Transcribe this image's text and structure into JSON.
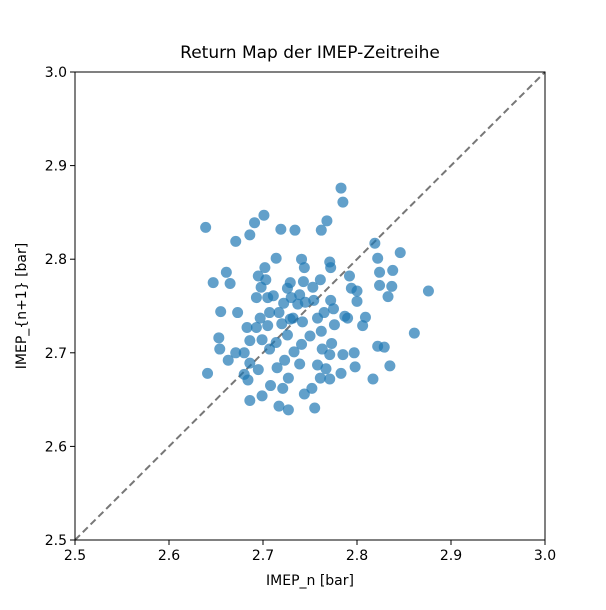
{
  "chart_data": {
    "type": "scatter",
    "title": "Return Map der IMEP-Zeitreihe",
    "xlabel": "IMEP_n [bar]",
    "ylabel": "IMEP_{n+1} [bar]",
    "xlim": [
      2.5,
      3.0
    ],
    "ylim": [
      2.5,
      3.0
    ],
    "xticks": [
      2.5,
      2.6,
      2.7,
      2.8,
      2.9,
      {
        "value": 3,
        "label": "3.0"
      }
    ],
    "yticks": [
      2.5,
      2.6,
      2.7,
      2.8,
      2.9,
      {
        "value": 3,
        "label": "3.0"
      }
    ],
    "color": "#1f77b4",
    "x": [
      2.639,
      2.641,
      2.701,
      2.783,
      2.785,
      2.876,
      2.861,
      2.846,
      2.819,
      2.686,
      2.727,
      2.755,
      2.717,
      2.817,
      2.835,
      2.734,
      2.719,
      2.768,
      2.762,
      2.691,
      2.671,
      2.686,
      2.647,
      2.661,
      2.665,
      2.655,
      2.653,
      2.654,
      2.663,
      2.671,
      2.673,
      2.683,
      2.684,
      2.695,
      2.699,
      2.708,
      2.721,
      2.727,
      2.744,
      2.752,
      2.771,
      2.783,
      2.798,
      2.822,
      2.829,
      2.822,
      2.824,
      2.838,
      2.837,
      2.833,
      2.824,
      2.794,
      2.8,
      2.8,
      2.792,
      2.771,
      2.772,
      2.787,
      2.79,
      2.809,
      2.797,
      2.785,
      2.773,
      2.776,
      2.762,
      2.763,
      2.771,
      2.75,
      2.741,
      2.742,
      2.737,
      2.729,
      2.726,
      2.714,
      2.702,
      2.703,
      2.695,
      2.698,
      2.693,
      2.705,
      2.711,
      2.717,
      2.707,
      2.697,
      2.693,
      2.699,
      2.686,
      2.68,
      2.707,
      2.714,
      2.726,
      2.72,
      2.732,
      2.739,
      2.743,
      2.753,
      2.761,
      2.754,
      2.765,
      2.772,
      2.758,
      2.733,
      2.723,
      2.715,
      2.739,
      2.758,
      2.767,
      2.761,
      2.745,
      2.73,
      2.722,
      2.686,
      2.68,
      2.741,
      2.744,
      2.806,
      2.775,
      2.729,
      2.705
    ],
    "values": [
      2.834,
      2.678,
      2.847,
      2.876,
      2.861,
      2.766,
      2.721,
      2.807,
      2.817,
      2.649,
      2.639,
      2.641,
      2.643,
      2.672,
      2.686,
      2.831,
      2.832,
      2.841,
      2.831,
      2.839,
      2.819,
      2.826,
      2.775,
      2.786,
      2.774,
      2.744,
      2.716,
      2.704,
      2.692,
      2.7,
      2.743,
      2.727,
      2.671,
      2.682,
      2.654,
      2.665,
      2.662,
      2.673,
      2.656,
      2.662,
      2.672,
      2.678,
      2.685,
      2.707,
      2.706,
      2.801,
      2.786,
      2.788,
      2.771,
      2.76,
      2.772,
      2.769,
      2.766,
      2.755,
      2.782,
      2.797,
      2.791,
      2.739,
      2.737,
      2.738,
      2.7,
      2.698,
      2.71,
      2.73,
      2.723,
      2.704,
      2.698,
      2.718,
      2.709,
      2.733,
      2.752,
      2.775,
      2.769,
      2.801,
      2.791,
      2.778,
      2.782,
      2.77,
      2.759,
      2.759,
      2.761,
      2.743,
      2.743,
      2.737,
      2.727,
      2.714,
      2.713,
      2.7,
      2.704,
      2.711,
      2.719,
      2.731,
      2.737,
      2.762,
      2.776,
      2.77,
      2.778,
      2.756,
      2.743,
      2.756,
      2.737,
      2.701,
      2.692,
      2.684,
      2.688,
      2.687,
      2.683,
      2.673,
      2.754,
      2.759,
      2.753,
      2.689,
      2.677,
      2.8,
      2.791,
      2.729,
      2.747,
      2.736,
      2.729
    ]
  }
}
